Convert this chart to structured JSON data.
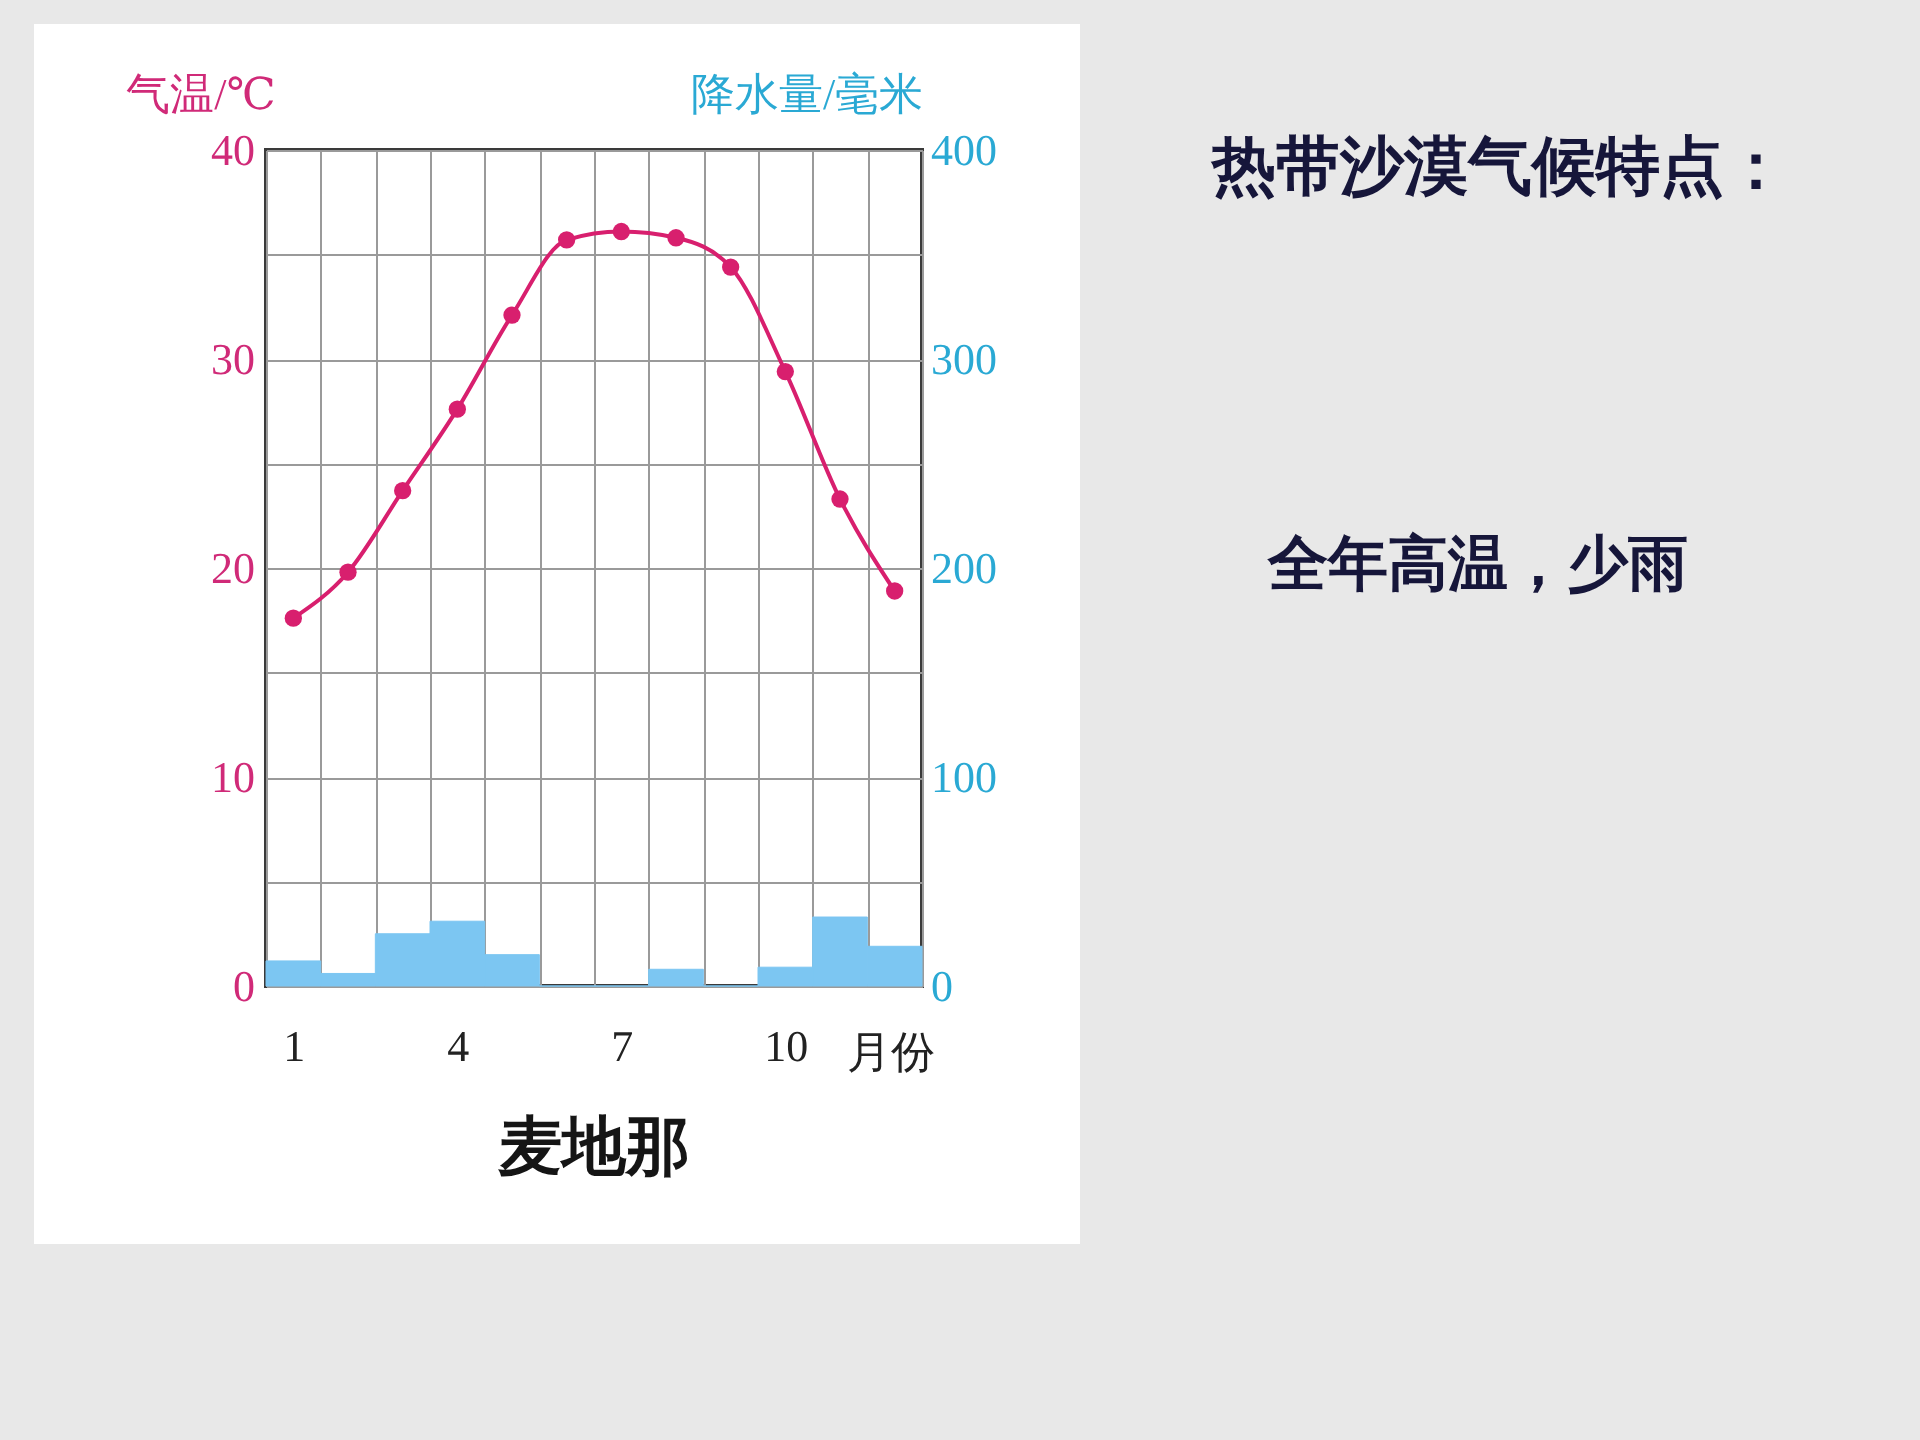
{
  "chart_data": {
    "type": "line",
    "title": "麦地那",
    "xlabel": "月份",
    "ylabel": "气温/℃",
    "y2label": "降水量/毫米",
    "categories": [
      "1",
      null,
      null,
      "4",
      null,
      null,
      "7",
      null,
      null,
      "10",
      null,
      null
    ],
    "series": [
      {
        "type": "bar",
        "axis": "y2",
        "color": "#7cc6f2",
        "values": [
          12,
          6,
          25,
          31,
          15,
          0,
          0,
          8,
          0,
          9,
          33,
          19
        ]
      },
      {
        "color": "#d81f6e",
        "values": [
          17.6,
          19.8,
          23.7,
          27.6,
          32.1,
          35.7,
          36.1,
          35.8,
          34.4,
          29.4,
          23.3,
          18.9
        ]
      }
    ],
    "ylim": [
      0,
      40
    ],
    "yticks": [
      0,
      {
        "value": 5,
        "label": null
      },
      10,
      {
        "value": 15,
        "label": null
      },
      20,
      {
        "value": 25,
        "label": null
      },
      30,
      {
        "value": 35,
        "label": null
      },
      40
    ],
    "y2lim": [
      0,
      400
    ],
    "y2ticks": [
      0,
      100,
      200,
      300,
      400
    ],
    "grid": true,
    "marker": "circle",
    "line_style": "solid",
    "annotations": [
      "热带沙漠气候特点：",
      "全年高温，少雨"
    ]
  }
}
